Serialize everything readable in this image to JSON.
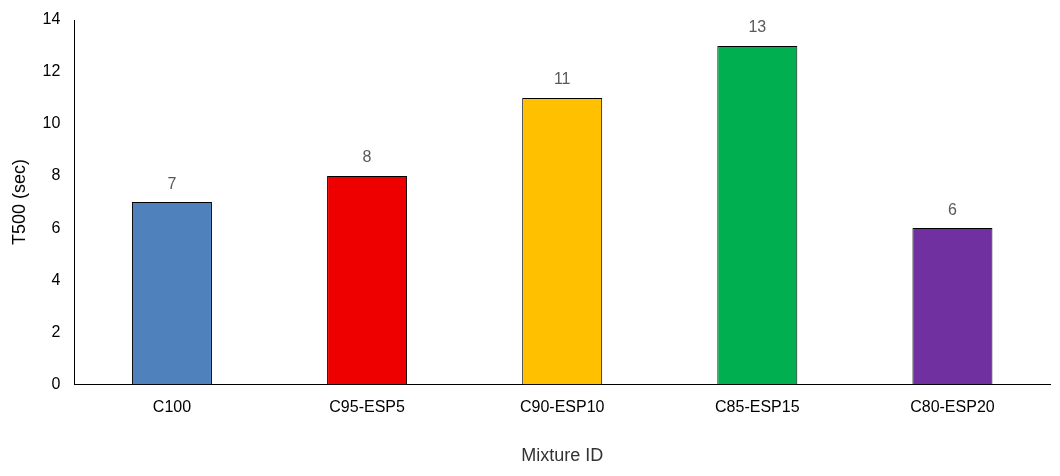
{
  "chart_data": {
    "type": "bar",
    "xlabel": "Mixture ID",
    "ylabel": "T500 (sec)",
    "categories": [
      "C100",
      "C95-ESP5",
      "C90-ESP10",
      "C85-ESP15",
      "C80-ESP20"
    ],
    "values": [
      7,
      8,
      11,
      13,
      6
    ],
    "colors": [
      "#4f81bd",
      "#ee0000",
      "#ffc000",
      "#00b050",
      "#7030a0"
    ],
    "ylim": [
      0,
      14
    ],
    "yticks": [
      0,
      2,
      4,
      6,
      8,
      10,
      12,
      14
    ],
    "grid": false,
    "legend": false,
    "data_labels": true
  }
}
